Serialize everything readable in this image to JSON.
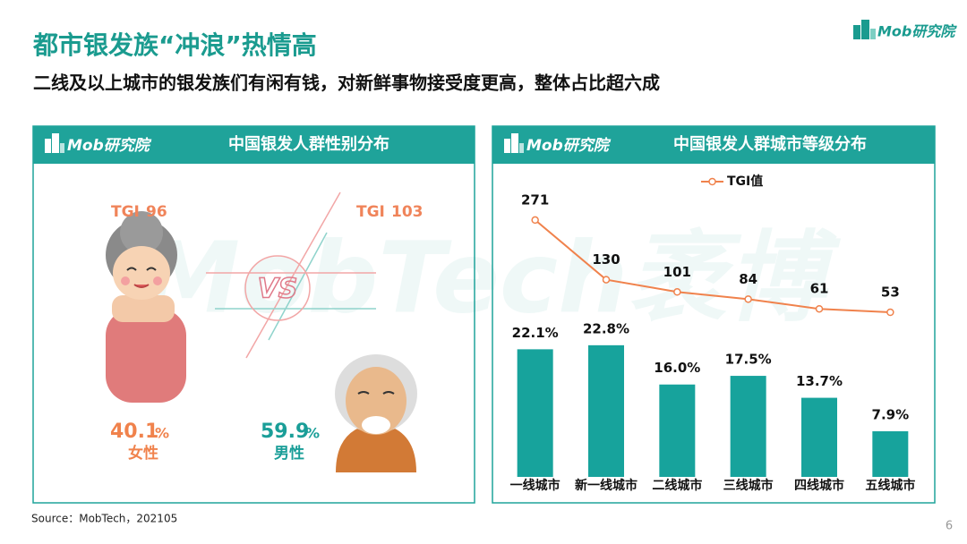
{
  "header": {
    "title": "都市银发族“冲浪”热情高",
    "subtitle": "二线及以上城市的银发族们有闲有钱，对新鲜事物接受度更高，整体占比超六成",
    "logo": "Mob研究院"
  },
  "watermark": "MobTech袤博",
  "gender_panel": {
    "logo": "Mob研究院",
    "title": "中国银发人群性别分布",
    "female": {
      "tgi_label": "TGI",
      "tgi": 96,
      "share": 40.1,
      "unit": "%",
      "name": "女性"
    },
    "male": {
      "tgi_label": "TGI",
      "tgi": 103,
      "share": 59.9,
      "unit": "%",
      "name": "男性"
    }
  },
  "chart_data": {
    "type": "bar_line",
    "logo": "Mob研究院",
    "title": "中国银发人群城市等级分布",
    "categories": [
      "一线城市",
      "新一线城市",
      "二线城市",
      "三线城市",
      "四线城市",
      "五线城市"
    ],
    "series": [
      {
        "type": "bar",
        "color": "#17a39c",
        "values": [
          22.1,
          22.8,
          16.0,
          17.5,
          13.7,
          7.9
        ],
        "value_labels": [
          "22.1%",
          "22.8%",
          "16.0%",
          "17.5%",
          "13.7%",
          "7.9%"
        ]
      },
      {
        "type": "line",
        "name": "TGI值",
        "color": "#f0824c",
        "axis": "y2",
        "values": [
          271,
          130,
          101,
          84,
          61,
          53
        ]
      }
    ],
    "ylim": [
      0,
      51.6
    ],
    "y2lim": [
      -336,
      368
    ]
  },
  "footer": {
    "source": "Source：MobTech，202105",
    "page": "6"
  }
}
